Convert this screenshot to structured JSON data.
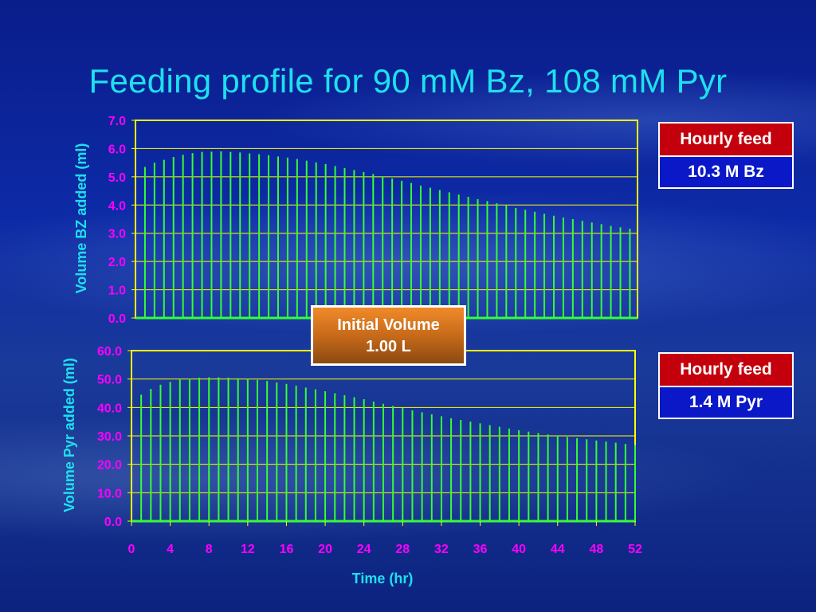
{
  "slide": {
    "title": "Feeding profile for 90 mM Bz, 108 mM Pyr"
  },
  "callout": {
    "line1": "Initial Volume",
    "line2": "1.00 L"
  },
  "legend_bz": {
    "header": "Hourly feed",
    "value": "10.3 M Bz"
  },
  "legend_pyr": {
    "header": "Hourly feed",
    "value": "1.4 M Pyr"
  },
  "colors": {
    "title": "#1ee0ee",
    "bar": "#33ff33",
    "tick_label": "#ff00ff",
    "axis_label": "#1ee0ee",
    "frame": "#ffff00",
    "legend_header_bg": "#c4000c",
    "legend_value_bg": "#0a18c8",
    "callout_bg": "#d07020"
  },
  "chart_data": [
    {
      "type": "bar",
      "ylabel": "Volume BZ added (ml)",
      "ylim": [
        0,
        7
      ],
      "yticks": [
        "0.0",
        "1.0",
        "2.0",
        "3.0",
        "4.0",
        "5.0",
        "6.0",
        "7.0"
      ],
      "grid": true,
      "x": [
        1,
        2,
        3,
        4,
        5,
        6,
        7,
        8,
        9,
        10,
        11,
        12,
        13,
        14,
        15,
        16,
        17,
        18,
        19,
        20,
        21,
        22,
        23,
        24,
        25,
        26,
        27,
        28,
        29,
        30,
        31,
        32,
        33,
        34,
        35,
        36,
        37,
        38,
        39,
        40,
        41,
        42,
        43,
        44,
        45,
        46,
        47,
        48,
        49,
        50,
        51,
        52
      ],
      "values": [
        5.35,
        5.5,
        5.6,
        5.7,
        5.78,
        5.84,
        5.88,
        5.89,
        5.9,
        5.88,
        5.86,
        5.83,
        5.8,
        5.76,
        5.72,
        5.68,
        5.63,
        5.57,
        5.51,
        5.45,
        5.38,
        5.31,
        5.24,
        5.17,
        5.1,
        5.02,
        4.94,
        4.86,
        4.78,
        4.69,
        4.61,
        4.53,
        4.45,
        4.37,
        4.29,
        4.21,
        4.14,
        4.06,
        3.98,
        3.9,
        3.83,
        3.76,
        3.69,
        3.62,
        3.56,
        3.5,
        3.44,
        3.38,
        3.32,
        3.26,
        3.21,
        3.16
      ]
    },
    {
      "type": "bar",
      "xlabel": "Time (hr)",
      "ylabel": "Volume Pyr added (ml)",
      "ylim": [
        0,
        60
      ],
      "yticks": [
        "0.0",
        "10.0",
        "20.0",
        "30.0",
        "40.0",
        "50.0",
        "60.0"
      ],
      "xlim": [
        0,
        52
      ],
      "xticks": [
        "0",
        "4",
        "8",
        "12",
        "16",
        "20",
        "24",
        "28",
        "32",
        "36",
        "40",
        "44",
        "48",
        "52"
      ],
      "grid": true,
      "x": [
        1,
        2,
        3,
        4,
        5,
        6,
        7,
        8,
        9,
        10,
        11,
        12,
        13,
        14,
        15,
        16,
        17,
        18,
        19,
        20,
        21,
        22,
        23,
        24,
        25,
        26,
        27,
        28,
        29,
        30,
        31,
        32,
        33,
        34,
        35,
        36,
        37,
        38,
        39,
        40,
        41,
        42,
        43,
        44,
        45,
        46,
        47,
        48,
        49,
        50,
        51,
        52
      ],
      "values": [
        44.5,
        46.5,
        48,
        49,
        49.8,
        50.2,
        50.5,
        50.6,
        50.6,
        50.5,
        50.3,
        50,
        49.7,
        49.3,
        48.8,
        48.3,
        47.7,
        47,
        46.4,
        45.7,
        45,
        44.3,
        43.6,
        42.9,
        42.1,
        41.3,
        40.5,
        39.8,
        39,
        38.3,
        37.6,
        36.9,
        36.2,
        35.6,
        35,
        34.4,
        33.8,
        33.2,
        32.6,
        32,
        31.5,
        31,
        30.5,
        30,
        29.6,
        29.2,
        28.8,
        28.4,
        28,
        27.6,
        27.2,
        26.8
      ]
    }
  ]
}
